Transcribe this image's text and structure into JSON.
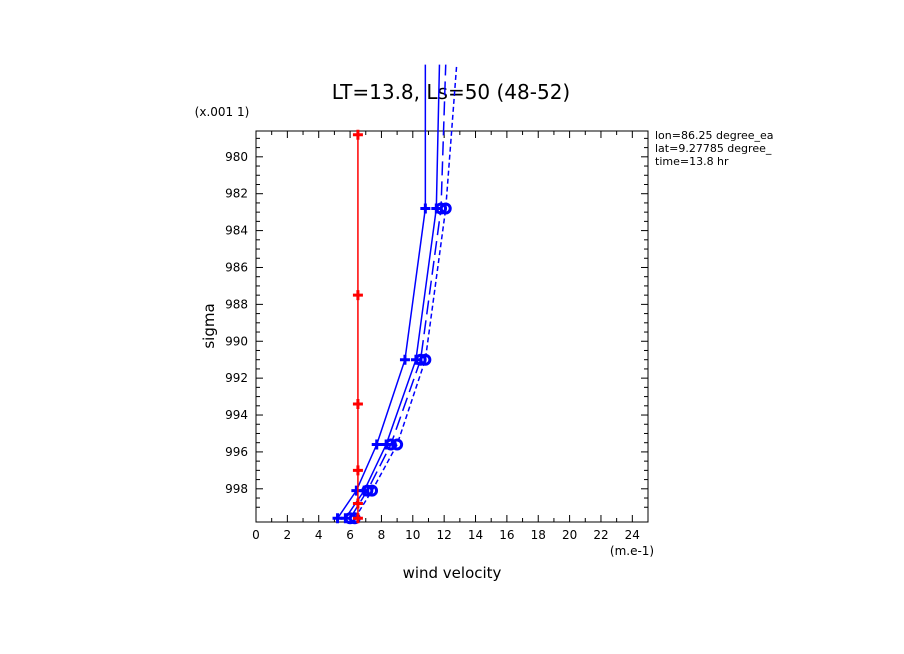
{
  "chart_data": {
    "type": "line",
    "title": "LT=13.8, Ls=50 (48-52)",
    "xlabel": "wind velocity",
    "ylabel": "sigma",
    "x_units": "(m.e-1)",
    "y_units": "(x.001 1)",
    "xlim": [
      0,
      25
    ],
    "ylim": [
      999.8,
      978.6
    ],
    "x_ticks": [
      "0",
      "2",
      "4",
      "6",
      "8",
      "10",
      "12",
      "14",
      "16",
      "18",
      "20",
      "22",
      "24"
    ],
    "y_ticks": [
      "980",
      "982",
      "984",
      "986",
      "988",
      "990",
      "992",
      "994",
      "996",
      "998"
    ],
    "info": [
      "lon=86.25 degree_ea",
      "lat=9.27785 degree_",
      "time=13.8 hr"
    ],
    "series": [
      {
        "color": "#0000ff",
        "dash": "solid",
        "marker": "plus",
        "points": [
          [
            5.2,
            999.6
          ],
          [
            6.4,
            998.1
          ],
          [
            7.7,
            995.6
          ],
          [
            9.5,
            991.0
          ],
          [
            10.8,
            982.8
          ],
          [
            10.8,
            975
          ]
        ]
      },
      {
        "color": "#0000ff",
        "dash": "solid",
        "marker": "plus",
        "points": [
          [
            5.7,
            999.6
          ],
          [
            6.9,
            998.1
          ],
          [
            8.3,
            995.6
          ],
          [
            10.2,
            991.0
          ],
          [
            11.5,
            982.8
          ],
          [
            11.7,
            975
          ]
        ]
      },
      {
        "color": "#0000ff",
        "dash": "long",
        "marker": "circle",
        "points": [
          [
            6.0,
            999.6
          ],
          [
            7.1,
            998.1
          ],
          [
            8.6,
            995.6
          ],
          [
            10.5,
            991.0
          ],
          [
            11.8,
            982.8
          ],
          [
            12.1,
            975
          ]
        ]
      },
      {
        "color": "#0000ff",
        "dash": "short",
        "marker": "circle",
        "points": [
          [
            6.3,
            999.6
          ],
          [
            7.4,
            998.1
          ],
          [
            9.0,
            995.6
          ],
          [
            10.8,
            991.0
          ],
          [
            12.1,
            982.8
          ],
          [
            12.8,
            975
          ]
        ]
      },
      {
        "color": "#ff0000",
        "dash": "solid",
        "marker": "plus",
        "points": [
          [
            6.5,
            999.6
          ],
          [
            6.5,
            998.8
          ],
          [
            6.5,
            997.0
          ],
          [
            6.5,
            993.4
          ],
          [
            6.5,
            987.5
          ],
          [
            6.5,
            978.8
          ]
        ]
      }
    ]
  }
}
